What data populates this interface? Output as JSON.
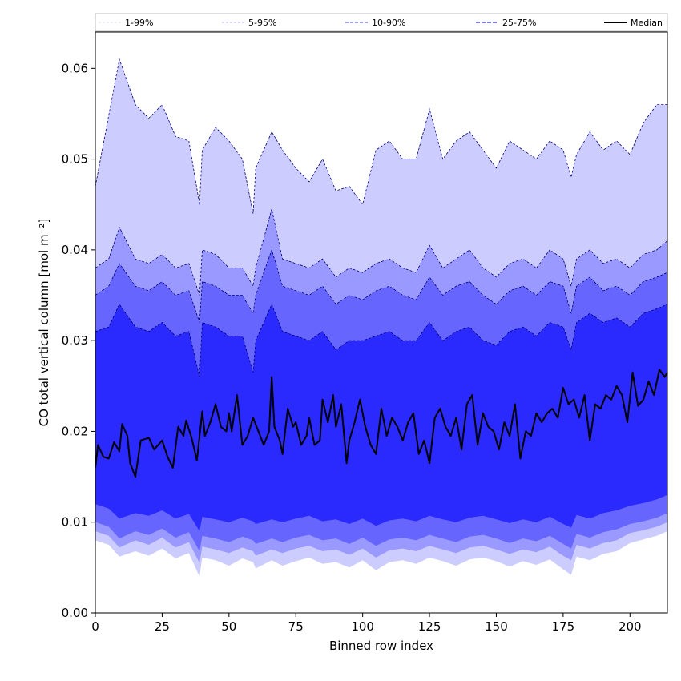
{
  "chart_data": {
    "type": "area",
    "xlabel": "Binned row index",
    "ylabel": "CO total vertical column [mol m⁻²]",
    "xlim": [
      0,
      214
    ],
    "ylim": [
      0,
      0.064
    ],
    "xticks": [
      0,
      25,
      50,
      75,
      100,
      125,
      150,
      175,
      200
    ],
    "yticks": [
      0.0,
      0.01,
      0.02,
      0.03,
      0.04,
      0.05,
      0.06
    ],
    "xtick_labels": [
      "0",
      "25",
      "50",
      "75",
      "100",
      "125",
      "150",
      "175",
      "200"
    ],
    "ytick_labels": [
      "0.00",
      "0.01",
      "0.02",
      "0.03",
      "0.04",
      "0.05",
      "0.06"
    ],
    "grid": false,
    "legend_position": "top",
    "legend": [
      "1-99%",
      "5-95%",
      "10-90%",
      "25-75%",
      "Median"
    ],
    "x_anchor": [
      0,
      5,
      9,
      15,
      20,
      25,
      30,
      35,
      39,
      40,
      45,
      50,
      55,
      59,
      60,
      66,
      70,
      75,
      80,
      85,
      90,
      95,
      100,
      105,
      110,
      115,
      120,
      125,
      130,
      135,
      140,
      145,
      150,
      155,
      160,
      165,
      170,
      175,
      178,
      180,
      185,
      190,
      195,
      200,
      205,
      210,
      214
    ],
    "bands": [
      {
        "name": "1-99%",
        "color": "#ccccff",
        "lower": [
          0.008,
          0.0075,
          0.0062,
          0.0068,
          0.0063,
          0.0071,
          0.006,
          0.0066,
          0.004,
          0.0061,
          0.0058,
          0.0052,
          0.006,
          0.0056,
          0.0049,
          0.0058,
          0.0052,
          0.0057,
          0.0061,
          0.0054,
          0.0056,
          0.005,
          0.0058,
          0.0047,
          0.0056,
          0.0058,
          0.0054,
          0.0061,
          0.0057,
          0.0052,
          0.0059,
          0.0061,
          0.0057,
          0.0051,
          0.0057,
          0.0053,
          0.0059,
          0.0048,
          0.0042,
          0.0062,
          0.0058,
          0.0065,
          0.0068,
          0.0077,
          0.0081,
          0.0085,
          0.009
        ],
        "upper": [
          0.047,
          0.0548,
          0.061,
          0.056,
          0.0545,
          0.056,
          0.0525,
          0.052,
          0.045,
          0.051,
          0.0535,
          0.052,
          0.05,
          0.044,
          0.049,
          0.053,
          0.051,
          0.049,
          0.0475,
          0.05,
          0.0465,
          0.047,
          0.045,
          0.051,
          0.052,
          0.05,
          0.05,
          0.0555,
          0.05,
          0.052,
          0.053,
          0.051,
          0.049,
          0.052,
          0.051,
          0.05,
          0.052,
          0.051,
          0.048,
          0.0505,
          0.053,
          0.051,
          0.052,
          0.0505,
          0.054,
          0.056,
          0.056
        ]
      },
      {
        "name": "5-95%",
        "color": "#9999ff",
        "lower": [
          0.009,
          0.0085,
          0.0072,
          0.008,
          0.0075,
          0.0083,
          0.0072,
          0.0078,
          0.0055,
          0.0073,
          0.007,
          0.0066,
          0.0072,
          0.0068,
          0.0063,
          0.007,
          0.0066,
          0.0071,
          0.0074,
          0.0068,
          0.007,
          0.0064,
          0.0071,
          0.0061,
          0.0069,
          0.0071,
          0.0068,
          0.0074,
          0.007,
          0.0066,
          0.0072,
          0.0074,
          0.007,
          0.0065,
          0.007,
          0.0067,
          0.0073,
          0.0063,
          0.0058,
          0.0075,
          0.0071,
          0.0077,
          0.008,
          0.0088,
          0.0091,
          0.0095,
          0.01
        ],
        "upper": [
          0.038,
          0.039,
          0.0425,
          0.039,
          0.0385,
          0.0395,
          0.038,
          0.0385,
          0.035,
          0.04,
          0.0395,
          0.038,
          0.038,
          0.036,
          0.038,
          0.0445,
          0.039,
          0.0385,
          0.038,
          0.039,
          0.037,
          0.038,
          0.0375,
          0.0385,
          0.039,
          0.038,
          0.0375,
          0.0405,
          0.038,
          0.039,
          0.04,
          0.038,
          0.037,
          0.0385,
          0.039,
          0.038,
          0.04,
          0.039,
          0.036,
          0.039,
          0.04,
          0.0385,
          0.039,
          0.038,
          0.0395,
          0.04,
          0.041
        ]
      },
      {
        "name": "10-90%",
        "color": "#6666ff",
        "lower": [
          0.01,
          0.0095,
          0.0082,
          0.009,
          0.0086,
          0.0093,
          0.0083,
          0.0089,
          0.0068,
          0.0085,
          0.0082,
          0.0078,
          0.0084,
          0.008,
          0.0076,
          0.0082,
          0.0078,
          0.0083,
          0.0086,
          0.008,
          0.0082,
          0.0076,
          0.0083,
          0.0074,
          0.0081,
          0.0083,
          0.008,
          0.0086,
          0.0082,
          0.0078,
          0.0084,
          0.0086,
          0.0082,
          0.0077,
          0.0082,
          0.0079,
          0.0085,
          0.0076,
          0.0071,
          0.0087,
          0.0083,
          0.0089,
          0.0092,
          0.0098,
          0.0101,
          0.0105,
          0.011
        ],
        "upper": [
          0.035,
          0.036,
          0.0385,
          0.036,
          0.0355,
          0.0365,
          0.035,
          0.0355,
          0.032,
          0.0365,
          0.036,
          0.035,
          0.035,
          0.033,
          0.035,
          0.04,
          0.036,
          0.0355,
          0.035,
          0.036,
          0.034,
          0.035,
          0.0345,
          0.0355,
          0.036,
          0.035,
          0.0345,
          0.037,
          0.035,
          0.036,
          0.0365,
          0.035,
          0.034,
          0.0355,
          0.036,
          0.035,
          0.0365,
          0.036,
          0.033,
          0.036,
          0.037,
          0.0355,
          0.036,
          0.035,
          0.0365,
          0.037,
          0.0375
        ]
      },
      {
        "name": "25-75%",
        "color": "#2a2aff",
        "lower": [
          0.012,
          0.0115,
          0.0104,
          0.011,
          0.0107,
          0.0113,
          0.0104,
          0.0109,
          0.009,
          0.0106,
          0.0103,
          0.01,
          0.0105,
          0.0101,
          0.0098,
          0.0103,
          0.01,
          0.0104,
          0.0107,
          0.0101,
          0.0103,
          0.0098,
          0.0104,
          0.0096,
          0.0102,
          0.0104,
          0.0101,
          0.0107,
          0.0103,
          0.01,
          0.0105,
          0.0107,
          0.0103,
          0.0099,
          0.0103,
          0.01,
          0.0106,
          0.0098,
          0.0094,
          0.0108,
          0.0104,
          0.011,
          0.0113,
          0.0118,
          0.0121,
          0.0125,
          0.013
        ],
        "upper": [
          0.031,
          0.0315,
          0.034,
          0.0315,
          0.031,
          0.032,
          0.0305,
          0.031,
          0.026,
          0.032,
          0.0315,
          0.0305,
          0.0305,
          0.0265,
          0.03,
          0.034,
          0.031,
          0.0305,
          0.03,
          0.031,
          0.029,
          0.03,
          0.03,
          0.0305,
          0.031,
          0.03,
          0.03,
          0.032,
          0.03,
          0.031,
          0.0315,
          0.03,
          0.0295,
          0.031,
          0.0315,
          0.0305,
          0.032,
          0.0315,
          0.029,
          0.032,
          0.033,
          0.032,
          0.0325,
          0.0315,
          0.033,
          0.0335,
          0.034
        ]
      }
    ],
    "series": [
      {
        "name": "Median",
        "color": "#000000",
        "x": [
          0,
          1,
          3,
          5,
          7,
          9,
          10,
          12,
          13,
          15,
          17,
          20,
          22,
          25,
          27,
          29,
          31,
          33,
          34,
          36,
          38,
          40,
          41,
          43,
          45,
          47,
          49,
          50,
          51,
          53,
          55,
          57,
          59,
          61,
          63,
          65,
          66,
          67,
          69,
          70,
          72,
          74,
          75,
          77,
          79,
          80,
          82,
          84,
          85,
          87,
          89,
          90,
          92,
          94,
          95,
          97,
          99,
          101,
          103,
          105,
          107,
          109,
          111,
          113,
          115,
          117,
          119,
          121,
          123,
          125,
          127,
          129,
          131,
          133,
          135,
          137,
          139,
          141,
          143,
          145,
          147,
          149,
          151,
          153,
          155,
          157,
          159,
          161,
          163,
          165,
          167,
          169,
          171,
          173,
          175,
          177,
          179,
          181,
          183,
          185,
          187,
          189,
          191,
          193,
          195,
          197,
          199,
          201,
          203,
          205,
          207,
          209,
          211,
          213,
          214
        ],
        "values": [
          0.016,
          0.0185,
          0.0172,
          0.017,
          0.0188,
          0.0178,
          0.0208,
          0.0195,
          0.0165,
          0.015,
          0.019,
          0.0193,
          0.018,
          0.019,
          0.0172,
          0.016,
          0.0205,
          0.0195,
          0.0212,
          0.0193,
          0.0168,
          0.0222,
          0.0195,
          0.021,
          0.023,
          0.0205,
          0.02,
          0.022,
          0.02,
          0.024,
          0.0185,
          0.0195,
          0.0215,
          0.02,
          0.0185,
          0.02,
          0.026,
          0.0205,
          0.019,
          0.0175,
          0.0225,
          0.0205,
          0.021,
          0.0185,
          0.0195,
          0.0215,
          0.0185,
          0.019,
          0.0235,
          0.021,
          0.024,
          0.0205,
          0.023,
          0.0165,
          0.019,
          0.021,
          0.0235,
          0.0205,
          0.0185,
          0.0175,
          0.0225,
          0.0195,
          0.0215,
          0.0205,
          0.019,
          0.021,
          0.022,
          0.0175,
          0.019,
          0.0165,
          0.0215,
          0.0225,
          0.0205,
          0.0195,
          0.0215,
          0.018,
          0.023,
          0.024,
          0.0185,
          0.022,
          0.0205,
          0.02,
          0.018,
          0.021,
          0.0195,
          0.023,
          0.017,
          0.02,
          0.0195,
          0.022,
          0.021,
          0.022,
          0.0225,
          0.0215,
          0.0248,
          0.023,
          0.0235,
          0.0215,
          0.024,
          0.019,
          0.023,
          0.0225,
          0.024,
          0.0235,
          0.025,
          0.024,
          0.021,
          0.0265,
          0.0228,
          0.0235,
          0.0255,
          0.024,
          0.0268,
          0.026,
          0.0265
        ]
      }
    ]
  }
}
